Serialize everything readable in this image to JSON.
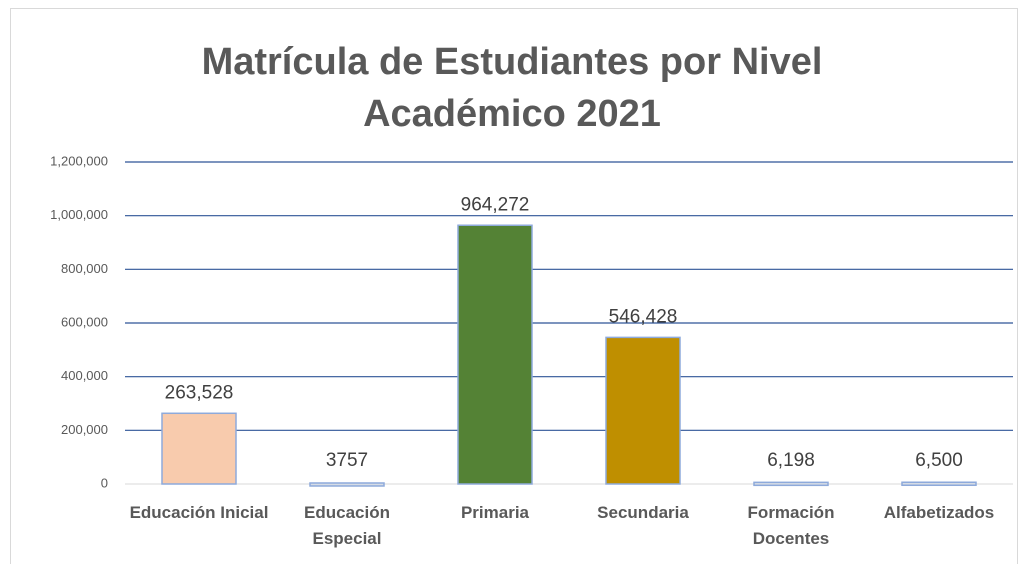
{
  "chart_data": {
    "type": "bar",
    "title": "Matrícula de Estudiantes por Nivel Académico 2021",
    "categories": [
      "Educación Inicial",
      "Educación Especial",
      "Primaria",
      "Secundaria",
      "Formación Docentes",
      "Alfabetizados"
    ],
    "values": [
      263528,
      3757,
      964272,
      546428,
      6198,
      6500
    ],
    "value_labels": [
      "263,528",
      "3757",
      "964,272",
      "546,428",
      "6,198",
      "6,500"
    ],
    "colors": [
      "#f8cbad",
      "#d6dce5",
      "#548235",
      "#bf8f00",
      "#d6dce5",
      "#d6dce5"
    ],
    "ylim": [
      0,
      1200000
    ],
    "yticks": [
      0,
      {
        "value": 200000,
        "label": "200,000"
      },
      {
        "value": 400000,
        "label": "400,000"
      },
      {
        "value": 600000,
        "label": "600,000"
      },
      {
        "value": 800000,
        "label": "800,000"
      },
      {
        "value": 1000000,
        "label": "1,000,000"
      },
      {
        "value": 1200000,
        "label": "1,200,000"
      }
    ],
    "grid": true
  }
}
